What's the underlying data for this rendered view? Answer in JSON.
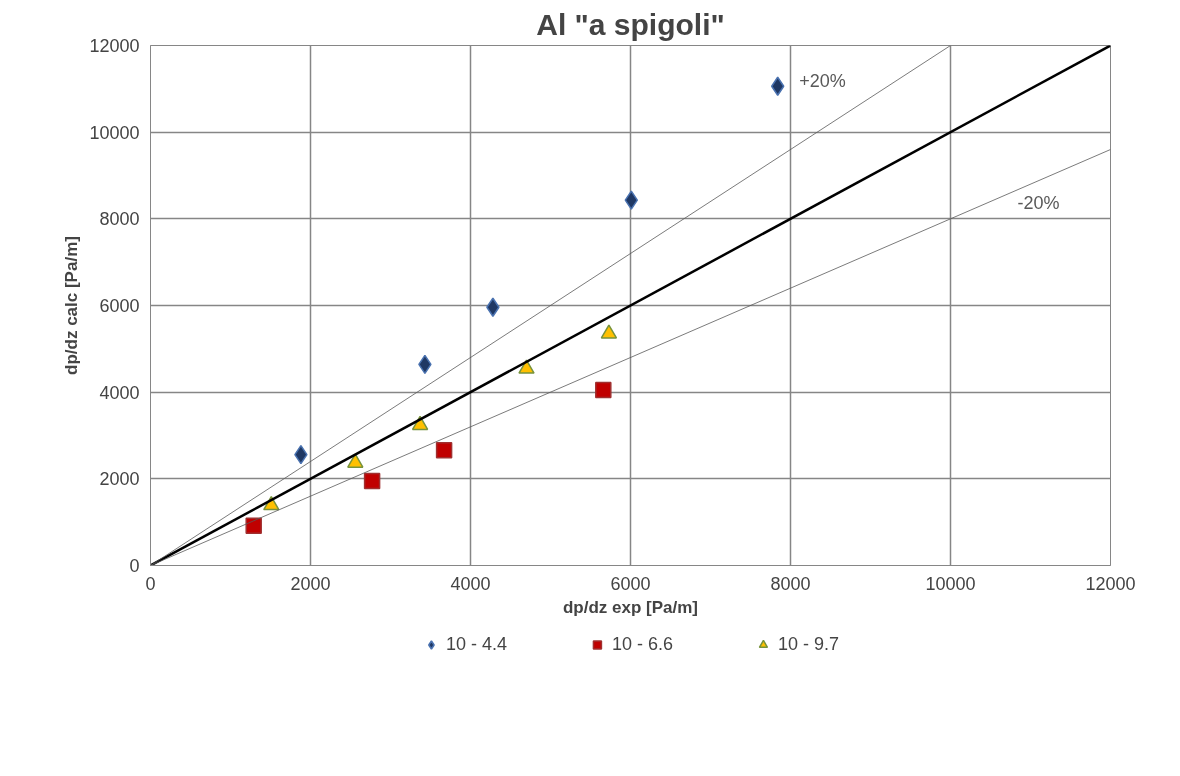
{
  "chart_data": {
    "type": "scatter",
    "title": "Al \"a spigoli\"",
    "xlabel": "dp/dz exp [Pa/m]",
    "ylabel": "dp/dz calc [Pa/m]",
    "xlim": [
      0,
      12000
    ],
    "ylim": [
      0,
      12000
    ],
    "xticks": [
      0,
      2000,
      4000,
      6000,
      8000,
      10000,
      12000
    ],
    "yticks": [
      0,
      2000,
      4000,
      6000,
      8000,
      10000,
      12000
    ],
    "grid": true,
    "legend": "bottom",
    "series": [
      {
        "name": "10 - 4.4",
        "color": "#1f3864",
        "marker": "diamond",
        "x": [
          1880,
          3430,
          4280,
          6010,
          7840
        ],
        "values": [
          2560,
          4640,
          5960,
          8430,
          11060
        ]
      },
      {
        "name": "10 - 6.6",
        "color": "#c00000",
        "marker": "square",
        "x": [
          1290,
          2770,
          3670,
          5660
        ],
        "values": [
          920,
          1950,
          2660,
          4050
        ]
      },
      {
        "name": "10 - 9.7",
        "color": "#ffc000",
        "marker": "triangle",
        "x": [
          1510,
          2560,
          3370,
          4700,
          5730
        ],
        "values": [
          1390,
          2370,
          3240,
          4540,
          5350
        ]
      },
      {
        "type": "line",
        "color": "#000000",
        "x": [
          0,
          12000
        ],
        "values": [
          0,
          12000
        ]
      },
      {
        "type": "line",
        "name": "+20%",
        "color": "#595959",
        "x": [
          0,
          10000
        ],
        "values": [
          0,
          12000
        ]
      },
      {
        "type": "line",
        "name": "-20%",
        "color": "#595959",
        "x": [
          0,
          12000
        ],
        "values": [
          0,
          9600
        ]
      }
    ]
  }
}
